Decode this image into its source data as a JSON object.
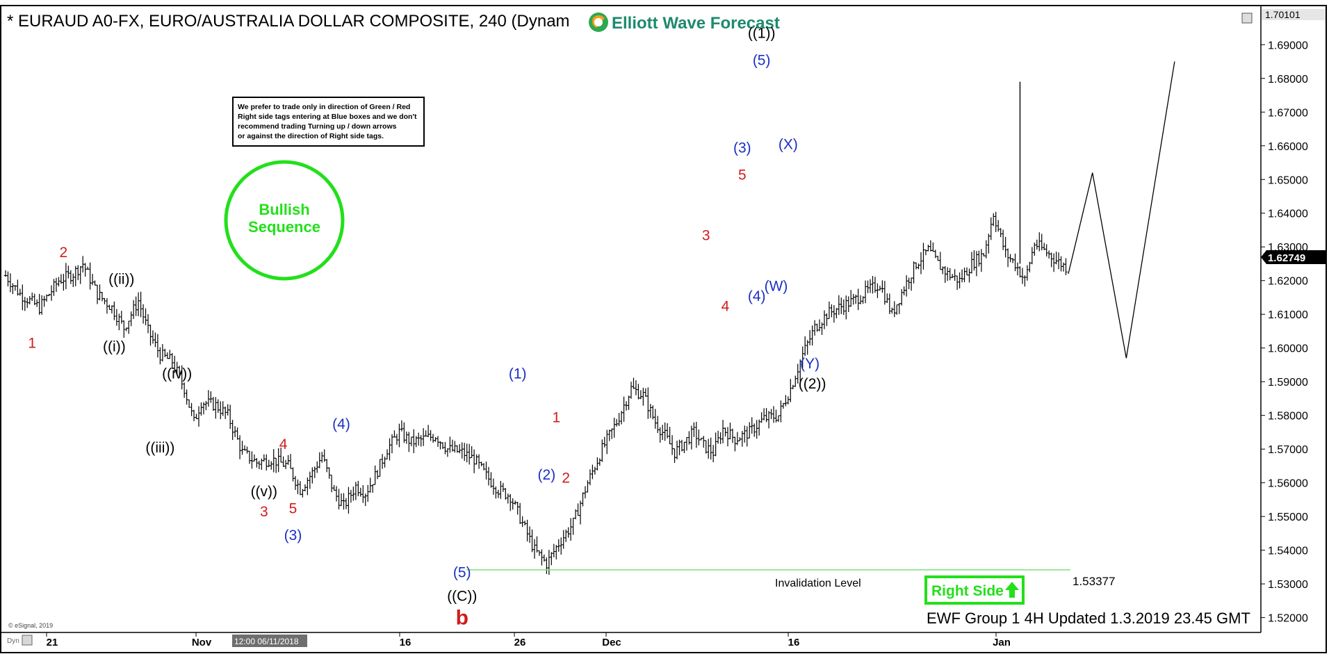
{
  "header": {
    "title": "* EURAUD A0-FX, EURO/AUSTRALIA DOLLAR COMPOSITE, 240 (Dynam",
    "logo_text": "Elliott Wave Forecast",
    "top_right_price": "1.70101",
    "copyright": "© eSignal, 2019",
    "bottom_left_tag": "Dyn",
    "cursor_time": "12:00 06/11/2018"
  },
  "note_box": {
    "lines": [
      "We prefer to trade only in direction of Green / Red",
      "Right side tags entering at Blue boxes and we don't",
      "recommend trading Turning up / down arrows",
      "or against the direction of Right side tags."
    ]
  },
  "bullish_badge": {
    "line1": "Bullish",
    "line2": "Sequence",
    "color": "#22e01a"
  },
  "right_side_tag": {
    "label": "Right Side",
    "arrow": "up-arrow-icon",
    "color": "#22e01a"
  },
  "invalidation": {
    "label": "Invalidation  Level",
    "value_label": "1.53377",
    "value": 1.53377,
    "color": "#7ee07a"
  },
  "footer_text": "EWF Group 1 4H Updated 1.3.2019 23.45 GMT",
  "current_price": {
    "label": "1.62749",
    "value": 1.62749
  },
  "chart_data": {
    "type": "ohlc",
    "symbol": "EURAUD",
    "timeframe": "240",
    "ylim": [
      1.516,
      1.7012
    ],
    "y_ticks": [
      "1.52000",
      "1.53000",
      "1.54000",
      "1.55000",
      "1.56000",
      "1.57000",
      "1.58000",
      "1.59000",
      "1.60000",
      "1.61000",
      "1.62000",
      "1.63000",
      "1.64000",
      "1.65000",
      "1.66000",
      "1.67000",
      "1.68000",
      "1.69000"
    ],
    "x_ticks": [
      "21",
      "Nov",
      "16",
      "26",
      "Dec",
      "16",
      "Jan"
    ],
    "path": [
      [
        0,
        1.6215
      ],
      [
        6,
        1.616
      ],
      [
        14,
        1.612
      ],
      [
        22,
        1.62
      ],
      [
        28,
        1.622
      ],
      [
        32,
        1.625
      ],
      [
        38,
        1.616
      ],
      [
        44,
        1.612
      ],
      [
        49,
        1.606
      ],
      [
        55,
        1.614
      ],
      [
        59,
        1.605
      ],
      [
        64,
        1.598
      ],
      [
        69,
        1.596
      ],
      [
        74,
        1.588
      ],
      [
        78,
        1.578
      ],
      [
        81,
        1.584
      ],
      [
        87,
        1.583
      ],
      [
        92,
        1.58
      ],
      [
        98,
        1.569
      ],
      [
        104,
        1.566
      ],
      [
        110,
        1.567
      ],
      [
        117,
        1.565
      ],
      [
        122,
        1.558
      ],
      [
        127,
        1.563
      ],
      [
        131,
        1.568
      ],
      [
        136,
        1.557
      ],
      [
        140,
        1.553
      ],
      [
        145,
        1.559
      ],
      [
        149,
        1.557
      ],
      [
        153,
        1.562
      ],
      [
        158,
        1.57
      ],
      [
        163,
        1.575
      ],
      [
        168,
        1.572
      ],
      [
        173,
        1.573
      ],
      [
        178,
        1.574
      ],
      [
        183,
        1.57
      ],
      [
        189,
        1.569
      ],
      [
        194,
        1.567
      ],
      [
        199,
        1.562
      ],
      [
        204,
        1.558
      ],
      [
        209,
        1.556
      ],
      [
        214,
        1.548
      ],
      [
        219,
        1.54
      ],
      [
        224,
        1.536
      ],
      [
        229,
        1.542
      ],
      [
        235,
        1.548
      ],
      [
        241,
        1.56
      ],
      [
        247,
        1.57
      ],
      [
        253,
        1.578
      ],
      [
        259,
        1.588
      ],
      [
        264,
        1.586
      ],
      [
        269,
        1.578
      ],
      [
        273,
        1.574
      ],
      [
        277,
        1.569
      ],
      [
        281,
        1.572
      ],
      [
        285,
        1.575
      ],
      [
        289,
        1.571
      ],
      [
        293,
        1.569
      ],
      [
        297,
        1.576
      ],
      [
        302,
        1.573
      ],
      [
        308,
        1.575
      ],
      [
        314,
        1.579
      ],
      [
        320,
        1.58
      ],
      [
        325,
        1.588
      ],
      [
        330,
        1.598
      ],
      [
        335,
        1.606
      ],
      [
        340,
        1.61
      ],
      [
        345,
        1.612
      ],
      [
        351,
        1.614
      ],
      [
        357,
        1.617
      ],
      [
        362,
        1.619
      ],
      [
        367,
        1.61
      ],
      [
        372,
        1.618
      ],
      [
        377,
        1.625
      ],
      [
        382,
        1.629
      ],
      [
        386,
        1.625
      ],
      [
        390,
        1.622
      ],
      [
        395,
        1.62
      ],
      [
        400,
        1.625
      ],
      [
        405,
        1.628
      ],
      [
        409,
        1.64
      ],
      [
        414,
        1.628
      ],
      [
        418,
        1.625
      ],
      [
        422,
        1.62
      ],
      [
        426,
        1.631
      ],
      [
        430,
        1.629
      ],
      [
        435,
        1.626
      ],
      [
        439,
        1.624
      ]
    ],
    "projection": [
      [
        440,
        1.622
      ],
      [
        450,
        1.652
      ],
      [
        464,
        1.597
      ],
      [
        484,
        1.685
      ]
    ],
    "projection_xmax": 484,
    "spike": {
      "x": 420,
      "high": 1.679,
      "low": 1.625
    },
    "labels": [
      {
        "text": "1",
        "x": 11,
        "price": 1.6,
        "color": "red"
      },
      {
        "text": "2",
        "x": 24,
        "price": 1.627,
        "color": "red"
      },
      {
        "text": "((i))",
        "x": 45,
        "price": 1.599,
        "color": "black"
      },
      {
        "text": "((ii))",
        "x": 48,
        "price": 1.619,
        "color": "black"
      },
      {
        "text": "((iii))",
        "x": 64,
        "price": 1.569,
        "color": "black"
      },
      {
        "text": "((iv))",
        "x": 71,
        "price": 1.591,
        "color": "black"
      },
      {
        "text": "((v))",
        "x": 107,
        "price": 1.556,
        "color": "black"
      },
      {
        "text": "3",
        "x": 107,
        "price": 1.55,
        "color": "red"
      },
      {
        "text": "4",
        "x": 115,
        "price": 1.57,
        "color": "red"
      },
      {
        "text": "5",
        "x": 119,
        "price": 1.551,
        "color": "red"
      },
      {
        "text": "(3)",
        "x": 119,
        "price": 1.543,
        "color": "blue"
      },
      {
        "text": "(4)",
        "x": 139,
        "price": 1.576,
        "color": "blue"
      },
      {
        "text": "(5)",
        "x": 189,
        "price": 1.532,
        "color": "blue"
      },
      {
        "text": "((C))",
        "x": 189,
        "price": 1.525,
        "color": "black"
      },
      {
        "text": "b",
        "x": 189,
        "price": 1.518,
        "color": "red",
        "big": true
      },
      {
        "text": "(1)",
        "x": 212,
        "price": 1.591,
        "color": "blue"
      },
      {
        "text": "(2)",
        "x": 224,
        "price": 1.561,
        "color": "blue"
      },
      {
        "text": "1",
        "x": 228,
        "price": 1.578,
        "color": "red"
      },
      {
        "text": "2",
        "x": 232,
        "price": 1.56,
        "color": "red"
      },
      {
        "text": "3",
        "x": 290,
        "price": 1.632,
        "color": "red"
      },
      {
        "text": "4",
        "x": 298,
        "price": 1.611,
        "color": "red"
      },
      {
        "text": "(3)",
        "x": 305,
        "price": 1.658,
        "color": "blue"
      },
      {
        "text": "5",
        "x": 305,
        "price": 1.65,
        "color": "red"
      },
      {
        "text": "((1))",
        "x": 313,
        "price": 1.692,
        "color": "black"
      },
      {
        "text": "(5)",
        "x": 313,
        "price": 1.684,
        "color": "blue"
      },
      {
        "text": "(4)",
        "x": 311,
        "price": 1.614,
        "color": "blue"
      },
      {
        "text": "(W)",
        "x": 319,
        "price": 1.617,
        "color": "blue"
      },
      {
        "text": "(X)",
        "x": 324,
        "price": 1.659,
        "color": "blue"
      },
      {
        "text": "(Y)",
        "x": 333,
        "price": 1.594,
        "color": "blue"
      },
      {
        "text": "((2))",
        "x": 334,
        "price": 1.588,
        "color": "black"
      }
    ]
  }
}
